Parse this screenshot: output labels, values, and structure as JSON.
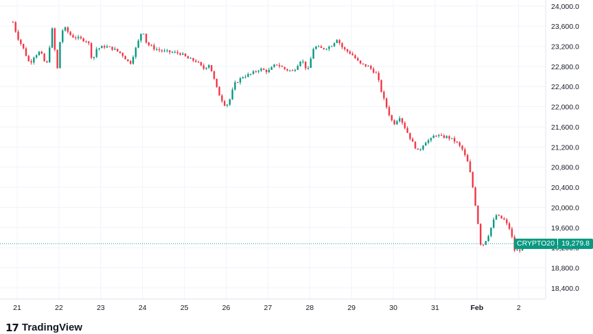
{
  "brand": {
    "logo_text": "TradingView",
    "logo_icon": "tradingview-logo-icon"
  },
  "chart_data": {
    "type": "candlestick",
    "symbol": "CRYPTO20",
    "last_price": 19279.8,
    "last_price_label": "19,279.8",
    "colors": {
      "up": "#089981",
      "down": "#f23645",
      "grid": "#f0f3fa",
      "price_line": "#089981"
    },
    "grid": true,
    "ylim": [
      18180,
      24120
    ],
    "y_ticks": [
      {
        "value": 24000,
        "label": "24,000.0"
      },
      {
        "value": 23600,
        "label": "23,600.0"
      },
      {
        "value": 23200,
        "label": "23,200.0"
      },
      {
        "value": 22800,
        "label": "22,800.0"
      },
      {
        "value": 22400,
        "label": "22,400.0"
      },
      {
        "value": 22000,
        "label": "22,000.0"
      },
      {
        "value": 21600,
        "label": "21,600.0"
      },
      {
        "value": 21200,
        "label": "21,200.0"
      },
      {
        "value": 20800,
        "label": "20,800.0"
      },
      {
        "value": 20400,
        "label": "20,400.0"
      },
      {
        "value": 20000,
        "label": "20,000.0"
      },
      {
        "value": 19600,
        "label": "19,600.0"
      },
      {
        "value": 19200,
        "label": "19,200.0"
      },
      {
        "value": 18800,
        "label": "18,800.0"
      },
      {
        "value": 18400,
        "label": "18,400.0"
      }
    ],
    "x_ticks": [
      {
        "label": "21",
        "bold": false
      },
      {
        "label": "22",
        "bold": false
      },
      {
        "label": "23",
        "bold": false
      },
      {
        "label": "24",
        "bold": false
      },
      {
        "label": "25",
        "bold": false
      },
      {
        "label": "26",
        "bold": false
      },
      {
        "label": "27",
        "bold": false
      },
      {
        "label": "28",
        "bold": false
      },
      {
        "label": "29",
        "bold": false
      },
      {
        "label": "30",
        "bold": false
      },
      {
        "label": "31",
        "bold": false
      },
      {
        "label": "Feb",
        "bold": true
      },
      {
        "label": "2",
        "bold": false
      }
    ],
    "close_path": [
      [
        20.9,
        23680
      ],
      [
        21.0,
        23400
      ],
      [
        21.15,
        23150
      ],
      [
        21.3,
        22850
      ],
      [
        21.4,
        23000
      ],
      [
        21.55,
        23100
      ],
      [
        21.7,
        22800
      ],
      [
        21.85,
        23600
      ],
      [
        21.95,
        22650
      ],
      [
        22.05,
        23500
      ],
      [
        22.15,
        23550
      ],
      [
        22.3,
        23400
      ],
      [
        22.5,
        23350
      ],
      [
        22.7,
        23300
      ],
      [
        22.8,
        22900
      ],
      [
        22.9,
        23150
      ],
      [
        23.1,
        23200
      ],
      [
        23.3,
        23150
      ],
      [
        23.5,
        23050
      ],
      [
        23.7,
        22850
      ],
      [
        23.9,
        23300
      ],
      [
        24.0,
        23550
      ],
      [
        24.1,
        23250
      ],
      [
        24.3,
        23150
      ],
      [
        24.5,
        23100
      ],
      [
        24.7,
        23080
      ],
      [
        24.9,
        23060
      ],
      [
        25.1,
        22950
      ],
      [
        25.3,
        22900
      ],
      [
        25.45,
        22750
      ],
      [
        25.6,
        22850
      ],
      [
        25.8,
        22300
      ],
      [
        25.95,
        22050
      ],
      [
        26.05,
        22050
      ],
      [
        26.2,
        22450
      ],
      [
        26.4,
        22600
      ],
      [
        26.6,
        22650
      ],
      [
        26.8,
        22750
      ],
      [
        27.0,
        22700
      ],
      [
        27.2,
        22850
      ],
      [
        27.4,
        22750
      ],
      [
        27.6,
        22700
      ],
      [
        27.8,
        22950
      ],
      [
        27.95,
        22700
      ],
      [
        28.1,
        23200
      ],
      [
        28.3,
        23150
      ],
      [
        28.5,
        23200
      ],
      [
        28.65,
        23350
      ],
      [
        28.8,
        23150
      ],
      [
        29.0,
        23050
      ],
      [
        29.2,
        22850
      ],
      [
        29.4,
        22800
      ],
      [
        29.6,
        22650
      ],
      [
        29.75,
        22200
      ],
      [
        29.9,
        21850
      ],
      [
        30.0,
        21650
      ],
      [
        30.15,
        21800
      ],
      [
        30.3,
        21550
      ],
      [
        30.45,
        21300
      ],
      [
        30.6,
        21100
      ],
      [
        30.75,
        21300
      ],
      [
        30.9,
        21350
      ],
      [
        31.0,
        21450
      ],
      [
        31.15,
        21400
      ],
      [
        31.3,
        21400
      ],
      [
        31.5,
        21300
      ],
      [
        31.65,
        21150
      ],
      [
        31.8,
        20850
      ],
      [
        31.9,
        20400
      ],
      [
        32.0,
        19850
      ],
      [
        32.1,
        19200
      ],
      [
        32.25,
        19400
      ],
      [
        32.45,
        19850
      ],
      [
        32.65,
        19750
      ],
      [
        32.8,
        19550
      ],
      [
        32.9,
        19150
      ],
      [
        33.0,
        19150
      ],
      [
        33.15,
        19250
      ],
      [
        33.25,
        19279.8
      ]
    ]
  }
}
